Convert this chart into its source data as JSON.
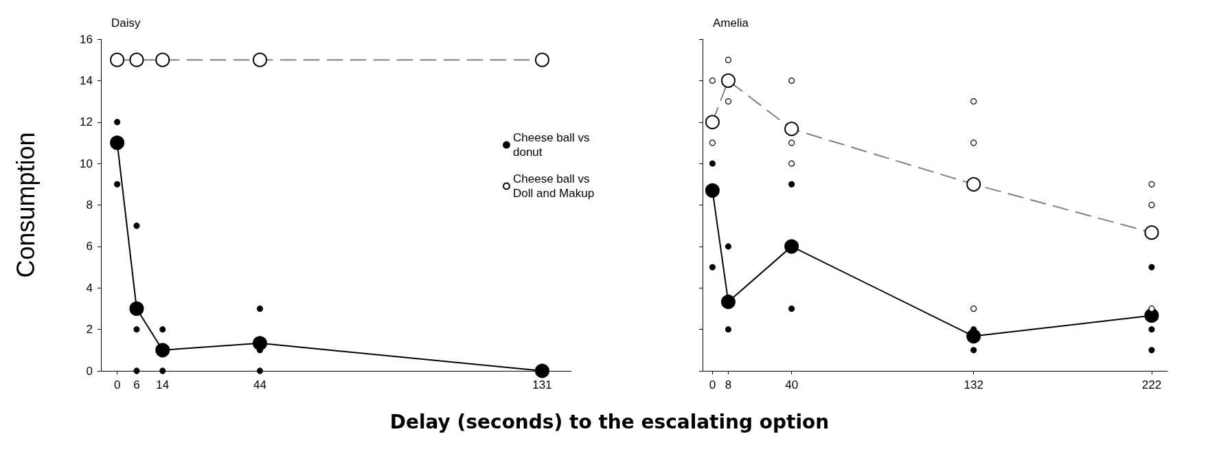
{
  "chart_data": [
    {
      "type": "line",
      "title": "Daisy",
      "ylabel": "Consumption",
      "xlabel": "Delay (seconds) to the escalating option",
      "xlim": [
        -5,
        140
      ],
      "xticks": [
        0,
        6,
        14,
        44,
        131
      ],
      "ylim": [
        0,
        16
      ],
      "yticks": [
        0,
        2,
        4,
        6,
        8,
        10,
        12,
        14,
        16
      ],
      "grid": false,
      "legend": "right",
      "marker": "circle",
      "series": [
        {
          "color": "#000000",
          "line_style": "solid",
          "x": [
            0,
            6,
            14,
            44,
            131
          ],
          "values": [
            11,
            3,
            1,
            1.33,
            0
          ]
        },
        {
          "color": "#808080",
          "line_style": "dashed",
          "colors": [
            "#ffffff",
            "#ffffff",
            "#ffffff",
            "#ffffff",
            "#ffffff"
          ],
          "x": [
            0,
            6,
            14,
            44,
            131
          ],
          "values": [
            15,
            15,
            15,
            15,
            15
          ]
        },
        {
          "type": "scatter",
          "name": "Cheese ball vs donut",
          "color": "#000000",
          "x": [
            0,
            0,
            6,
            6,
            6,
            14,
            14,
            44,
            44,
            44
          ],
          "values": [
            12,
            9,
            7,
            2,
            0,
            2,
            0,
            3,
            1,
            0
          ]
        },
        {
          "type": "scatter",
          "name": "Cheese ball vs Doll and Makup",
          "color": "#ffffff"
        }
      ]
    },
    {
      "type": "line",
      "title": "Amelia",
      "xlim": [
        -5,
        230
      ],
      "xticks": [
        0,
        8,
        40,
        132,
        222
      ],
      "ylim": [
        0,
        16
      ],
      "yticks": [
        {
          "value": 0,
          "label": null
        },
        {
          "value": 2,
          "label": null
        },
        {
          "value": 4,
          "label": null
        },
        {
          "value": 6,
          "label": null
        },
        {
          "value": 8,
          "label": null
        },
        {
          "value": 10,
          "label": null
        },
        {
          "value": 12,
          "label": null
        },
        {
          "value": 14,
          "label": null
        },
        {
          "value": 16,
          "label": null
        }
      ],
      "tick_labels": "x",
      "grid": false,
      "legend": false,
      "marker": "circle",
      "series": [
        {
          "color": "#000000",
          "line_style": "solid",
          "x": [
            0,
            8,
            40,
            132,
            222
          ],
          "values": [
            8.7,
            3.33,
            6,
            1.67,
            2.67
          ]
        },
        {
          "color": "#808080",
          "line_style": "dashed",
          "colors": [
            "#ffffff",
            "#ffffff",
            "#ffffff",
            "#ffffff",
            "#ffffff"
          ],
          "x": [
            0,
            8,
            40,
            132,
            222
          ],
          "values": [
            12,
            14,
            11.67,
            9,
            6.67
          ]
        },
        {
          "type": "scatter",
          "color": "#000000",
          "x": [
            0,
            0,
            8,
            8,
            40,
            40,
            132,
            132,
            222,
            222,
            222
          ],
          "values": [
            10,
            5,
            6,
            2,
            9,
            3,
            2,
            1,
            5,
            2,
            1
          ]
        },
        {
          "type": "scatter",
          "color": "#ffffff",
          "x": [
            0,
            0,
            8,
            8,
            40,
            40,
            40,
            132,
            132,
            132,
            222,
            222,
            222
          ],
          "values": [
            14,
            11,
            15,
            13,
            14,
            11,
            10,
            13,
            11,
            3,
            9,
            8,
            3
          ]
        }
      ]
    }
  ]
}
